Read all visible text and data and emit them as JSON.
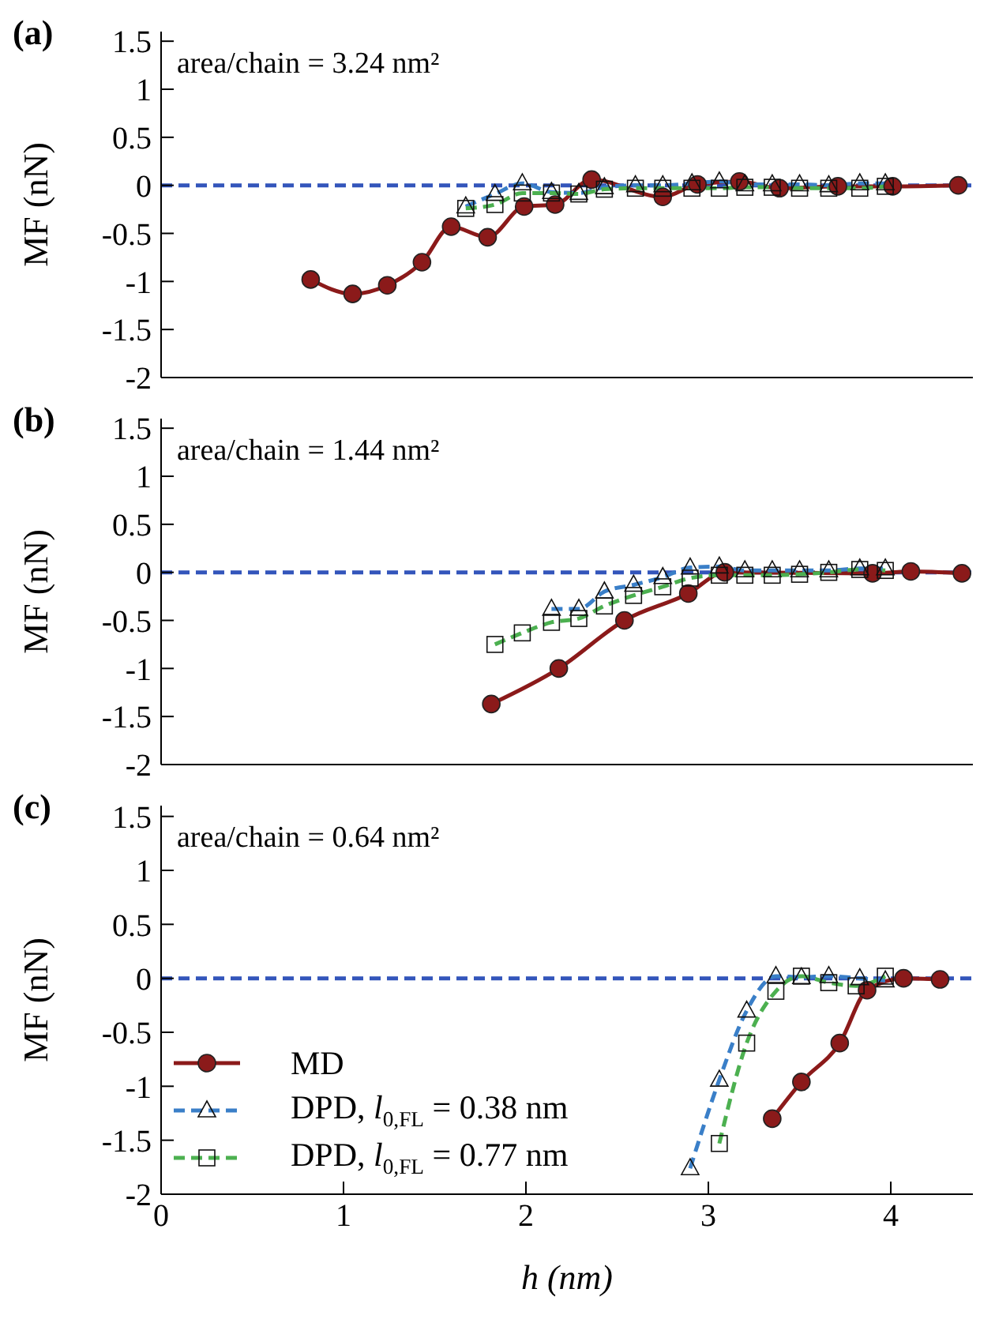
{
  "chart_data": [
    {
      "type": "line",
      "title": "(a)",
      "ylabel": "MF (nN)",
      "annotations": [
        "area/chain = 3.24 nm²"
      ],
      "xlim": [
        0,
        4.45
      ],
      "xticks": [
        0,
        1,
        2,
        3,
        4
      ],
      "ylim": [
        -2,
        1.6
      ],
      "yticks": [
        -2,
        -1.5,
        -1,
        -0.5,
        0,
        0.5,
        1,
        1.5
      ],
      "tick_labels": "y",
      "legend": false,
      "ref_lines": [
        {
          "axis": "y",
          "value": 0,
          "color": "#3355bb",
          "line_style": "dashed"
        }
      ],
      "series": [
        {
          "color": "#8b1a1a",
          "marker": "circle",
          "line_style": "solid",
          "x": [
            0.82,
            1.05,
            1.24,
            1.43,
            1.59,
            1.79,
            1.99,
            2.16,
            2.36,
            2.75,
            2.94,
            3.17,
            3.39,
            3.71,
            4.01,
            4.37
          ],
          "values": [
            -0.98,
            -1.13,
            -1.04,
            -0.8,
            -0.43,
            -0.54,
            -0.22,
            -0.2,
            0.06,
            -0.12,
            0.01,
            0.04,
            -0.03,
            -0.01,
            -0.01,
            0
          ]
        },
        {
          "color": "#3a7fc8",
          "marker": "triangle",
          "line_style": "dashed",
          "x": [
            1.67,
            1.83,
            1.98,
            2.14,
            2.29,
            2.43,
            2.6,
            2.75,
            2.91,
            3.06,
            3.2,
            3.35,
            3.5,
            3.66,
            3.83,
            3.97
          ],
          "values": [
            -0.22,
            -0.09,
            0.02,
            -0.07,
            -0.08,
            -0.02,
            0,
            0,
            0.02,
            0.04,
            0.01,
            0.01,
            0.01,
            0,
            0.02,
            0.02
          ]
        },
        {
          "color": "#4cb050",
          "marker": "square",
          "line_style": "dashed",
          "x": [
            1.67,
            1.83,
            1.98,
            2.14,
            2.29,
            2.43,
            2.6,
            2.75,
            2.91,
            3.06,
            3.2,
            3.35,
            3.5,
            3.66,
            3.83,
            3.97
          ],
          "values": [
            -0.24,
            -0.2,
            -0.08,
            -0.08,
            -0.09,
            -0.04,
            -0.03,
            -0.03,
            -0.03,
            -0.03,
            -0.02,
            -0.02,
            -0.03,
            -0.03,
            -0.03,
            -0.01
          ]
        }
      ]
    },
    {
      "type": "line",
      "title": "(b)",
      "ylabel": "MF (nN)",
      "annotations": [
        "area/chain = 1.44 nm²"
      ],
      "xlim": [
        0,
        4.45
      ],
      "xticks": [
        0,
        1,
        2,
        3,
        4
      ],
      "ylim": [
        -2,
        1.6
      ],
      "yticks": [
        -2,
        -1.5,
        -1,
        -0.5,
        0,
        0.5,
        1,
        1.5
      ],
      "tick_labels": "y",
      "legend": false,
      "ref_lines": [
        {
          "axis": "y",
          "value": 0,
          "color": "#3355bb",
          "line_style": "dashed"
        }
      ],
      "series": [
        {
          "color": "#8b1a1a",
          "marker": "circle",
          "line_style": "solid",
          "x": [
            1.81,
            2.18,
            2.54,
            2.89,
            3.09,
            3.9,
            4.11,
            4.39
          ],
          "values": [
            -1.37,
            -1,
            -0.5,
            -0.22,
            0,
            -0.01,
            0.01,
            -0.01
          ]
        },
        {
          "color": "#3a7fc8",
          "marker": "triangle",
          "line_style": "dashed",
          "x": [
            2.14,
            2.29,
            2.43,
            2.59,
            2.75,
            2.9,
            3.06,
            3.2,
            3.35,
            3.5,
            3.66,
            3.83,
            3.97
          ],
          "values": [
            -0.38,
            -0.38,
            -0.2,
            -0.13,
            -0.05,
            0.05,
            0.06,
            0.02,
            0.02,
            0.02,
            0.02,
            0.04,
            0.04
          ]
        },
        {
          "color": "#4cb050",
          "marker": "square",
          "line_style": "dashed",
          "x": [
            1.83,
            1.98,
            2.14,
            2.29,
            2.43,
            2.59,
            2.75,
            2.9,
            3.06,
            3.2,
            3.35,
            3.5,
            3.66,
            3.83,
            3.97
          ],
          "values": [
            -0.75,
            -0.63,
            -0.52,
            -0.48,
            -0.35,
            -0.24,
            -0.15,
            -0.06,
            -0.03,
            -0.03,
            -0.03,
            -0.02,
            0,
            0.03,
            0.02
          ]
        }
      ]
    },
    {
      "type": "line",
      "title": "(c)",
      "ylabel": "MF (nN)",
      "xlabel": "h (nm)",
      "annotations": [
        "area/chain = 0.64 nm²"
      ],
      "xlim": [
        0,
        4.45
      ],
      "xticks": [
        0,
        1,
        2,
        3,
        4
      ],
      "ylim": [
        -2,
        1.6
      ],
      "yticks": [
        -2,
        -1.5,
        -1,
        -0.5,
        0,
        0.5,
        1,
        1.5
      ],
      "legend": "bottom left",
      "ref_lines": [
        {
          "axis": "y",
          "value": 0,
          "color": "#3355bb",
          "line_style": "dashed"
        }
      ],
      "series": [
        {
          "name": "MD",
          "color": "#8b1a1a",
          "marker": "circle",
          "line_style": "solid",
          "x": [
            3.35,
            3.51,
            3.72,
            3.87,
            4.07,
            4.27
          ],
          "values": [
            -1.3,
            -0.96,
            -0.6,
            -0.11,
            0,
            -0.01
          ]
        },
        {
          "name": "DPD, l$_{0,FL}$ = 0.38 nm",
          "color": "#3a7fc8",
          "marker": "triangle",
          "line_style": "dashed",
          "x": [
            2.9,
            3.06,
            3.21,
            3.37,
            3.51,
            3.66,
            3.83,
            3.97
          ],
          "values": [
            -1.76,
            -0.94,
            -0.3,
            0.02,
            0.01,
            0.02,
            0,
            -0.02
          ]
        },
        {
          "name": "DPD, l$_{0,FL}$ = 0.77 nm",
          "color": "#4cb050",
          "marker": "square",
          "line_style": "dashed",
          "x": [
            3.06,
            3.21,
            3.37,
            3.51,
            3.66,
            3.81,
            3.97
          ],
          "values": [
            -1.53,
            -0.6,
            -0.12,
            0.02,
            -0.04,
            -0.07,
            0.02
          ]
        }
      ]
    }
  ]
}
